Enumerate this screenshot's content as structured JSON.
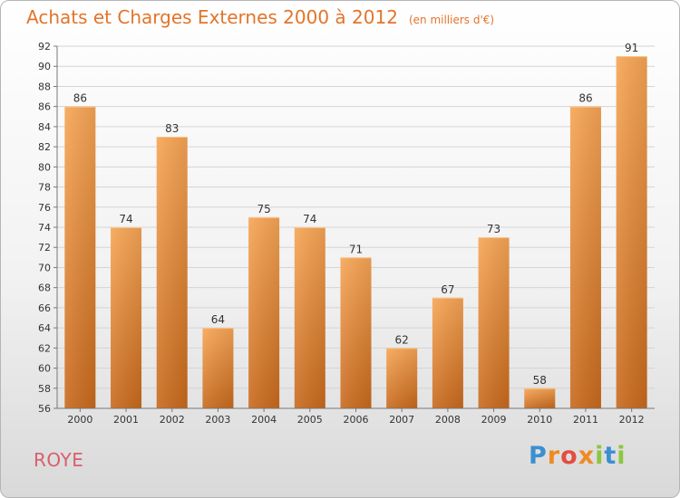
{
  "header": {
    "title": "Achats et Charges Externes 2000 à 2012",
    "unit": "(en milliers d'€)"
  },
  "footer": {
    "commune": "ROYE",
    "logo_text": "Proxiti"
  },
  "colors": {
    "title": "#e3742a",
    "commune": "#d85f6c",
    "bar_top": "#f7a555",
    "bar_bottom": "#c8691c",
    "logo": [
      "#3b8fd1",
      "#f08a23",
      "#e34d3f",
      "#8cc63f"
    ]
  },
  "chart_data": {
    "type": "bar",
    "title": "Achats et Charges Externes 2000 à 2012",
    "subtitle": "(en milliers d'€)",
    "xlabel": "",
    "ylabel": "",
    "categories": [
      "2000",
      "2001",
      "2002",
      "2003",
      "2004",
      "2005",
      "2006",
      "2007",
      "2008",
      "2009",
      "2010",
      "2011",
      "2012"
    ],
    "values": [
      86,
      74,
      83,
      64,
      75,
      74,
      71,
      62,
      67,
      73,
      58,
      86,
      91
    ],
    "ylim": [
      56,
      92
    ],
    "yticks": [
      56,
      58,
      60,
      62,
      64,
      66,
      68,
      70,
      72,
      74,
      76,
      78,
      80,
      82,
      84,
      86,
      88,
      90,
      92
    ],
    "grid": true,
    "data_labels": true,
    "legend": "none"
  }
}
